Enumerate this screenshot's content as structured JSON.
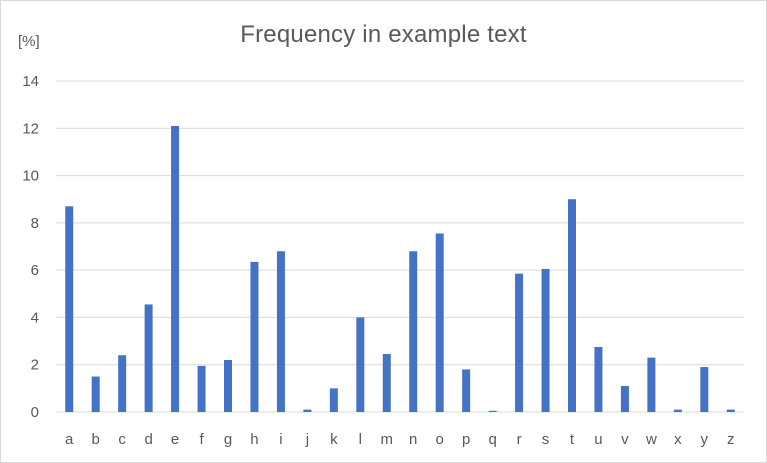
{
  "chart_data": {
    "type": "bar",
    "title": "Frequency in example text",
    "ylabel": "[%]",
    "xlabel": "",
    "ylim": [
      0,
      14
    ],
    "y_ticks": [
      "0",
      "2",
      "4",
      "6",
      "8",
      "10",
      "12",
      "14"
    ],
    "grid": true,
    "legend": "none",
    "categories": [
      "a",
      "b",
      "c",
      "d",
      "e",
      "f",
      "g",
      "h",
      "i",
      "j",
      "k",
      "l",
      "m",
      "n",
      "o",
      "p",
      "q",
      "r",
      "s",
      "t",
      "u",
      "v",
      "w",
      "x",
      "y",
      "z"
    ],
    "values": [
      8.7,
      1.5,
      2.4,
      4.55,
      12.1,
      1.95,
      2.2,
      6.35,
      6.8,
      0.1,
      1.0,
      4.0,
      2.45,
      6.8,
      7.55,
      1.8,
      0.05,
      5.85,
      6.05,
      9.0,
      2.75,
      1.1,
      2.3,
      0.1,
      1.9,
      0.1
    ],
    "bar_color": "#4472c4",
    "grid_color": "#d9d9d9",
    "text_color": "#595959"
  }
}
